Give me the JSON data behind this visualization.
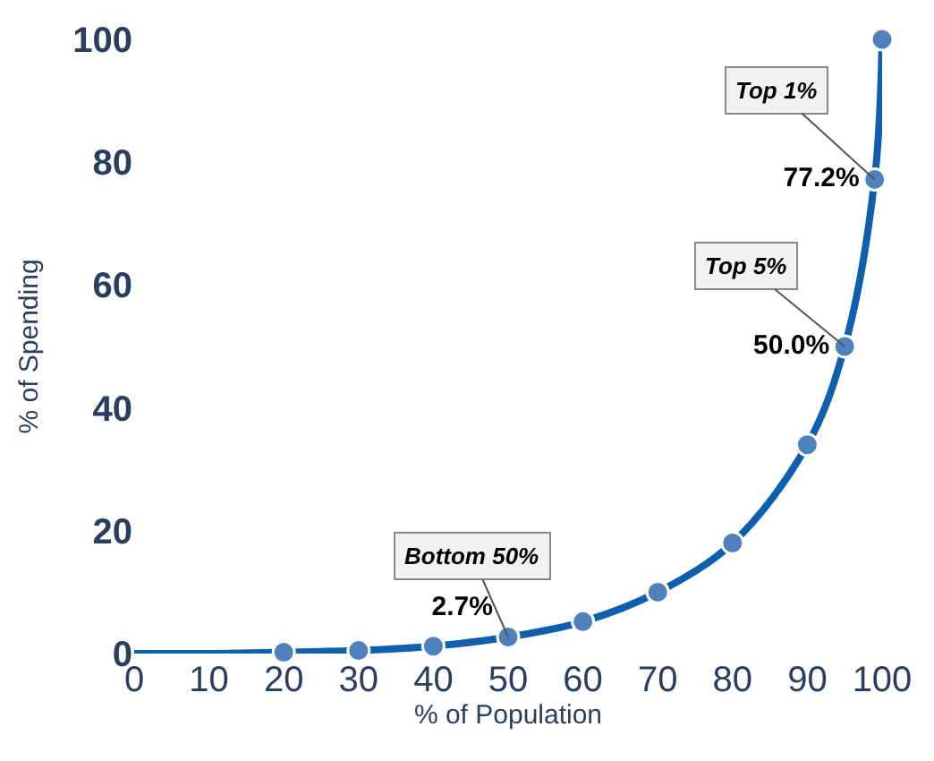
{
  "chart_data": {
    "type": "line",
    "xlabel": "% of Population",
    "ylabel": "% of Spending",
    "xlim": [
      0,
      100
    ],
    "xticks": [
      0,
      10,
      20,
      30,
      40,
      50,
      60,
      70,
      80,
      90,
      100
    ],
    "ylim": [
      0,
      100
    ],
    "yticks": [
      0,
      20,
      40,
      60,
      80,
      100
    ],
    "series": [
      {
        "color": "#0e5fae",
        "marker": "none",
        "x": [
          0,
          10,
          20,
          30,
          40,
          50,
          60,
          70,
          80,
          90,
          95,
          99,
          100
        ],
        "values": [
          0,
          0,
          0.2,
          0.5,
          1.2,
          2.7,
          5.2,
          10,
          18,
          34,
          50.0,
          77.2,
          100
        ]
      },
      {
        "type": "scatter",
        "color": "#4f81bd",
        "marker": "circle",
        "x": [
          20,
          30,
          40,
          50,
          60,
          70,
          80,
          90,
          95,
          99,
          100
        ],
        "values": [
          0.2,
          0.5,
          1.2,
          2.7,
          5.2,
          10,
          18,
          34,
          50.0,
          77.2,
          100
        ],
        "value_labels": [
          null,
          null,
          null,
          "2.7%",
          null,
          null,
          null,
          null,
          "50.0%",
          "77.2%",
          null
        ]
      }
    ],
    "annotations": [
      {
        "text": "Top 1%",
        "x": 99,
        "y": 77.2
      },
      {
        "text": "Top 5%",
        "x": 95,
        "y": 50.0
      },
      {
        "text": "Bottom 50%",
        "x": 50,
        "y": 2.7
      }
    ]
  }
}
